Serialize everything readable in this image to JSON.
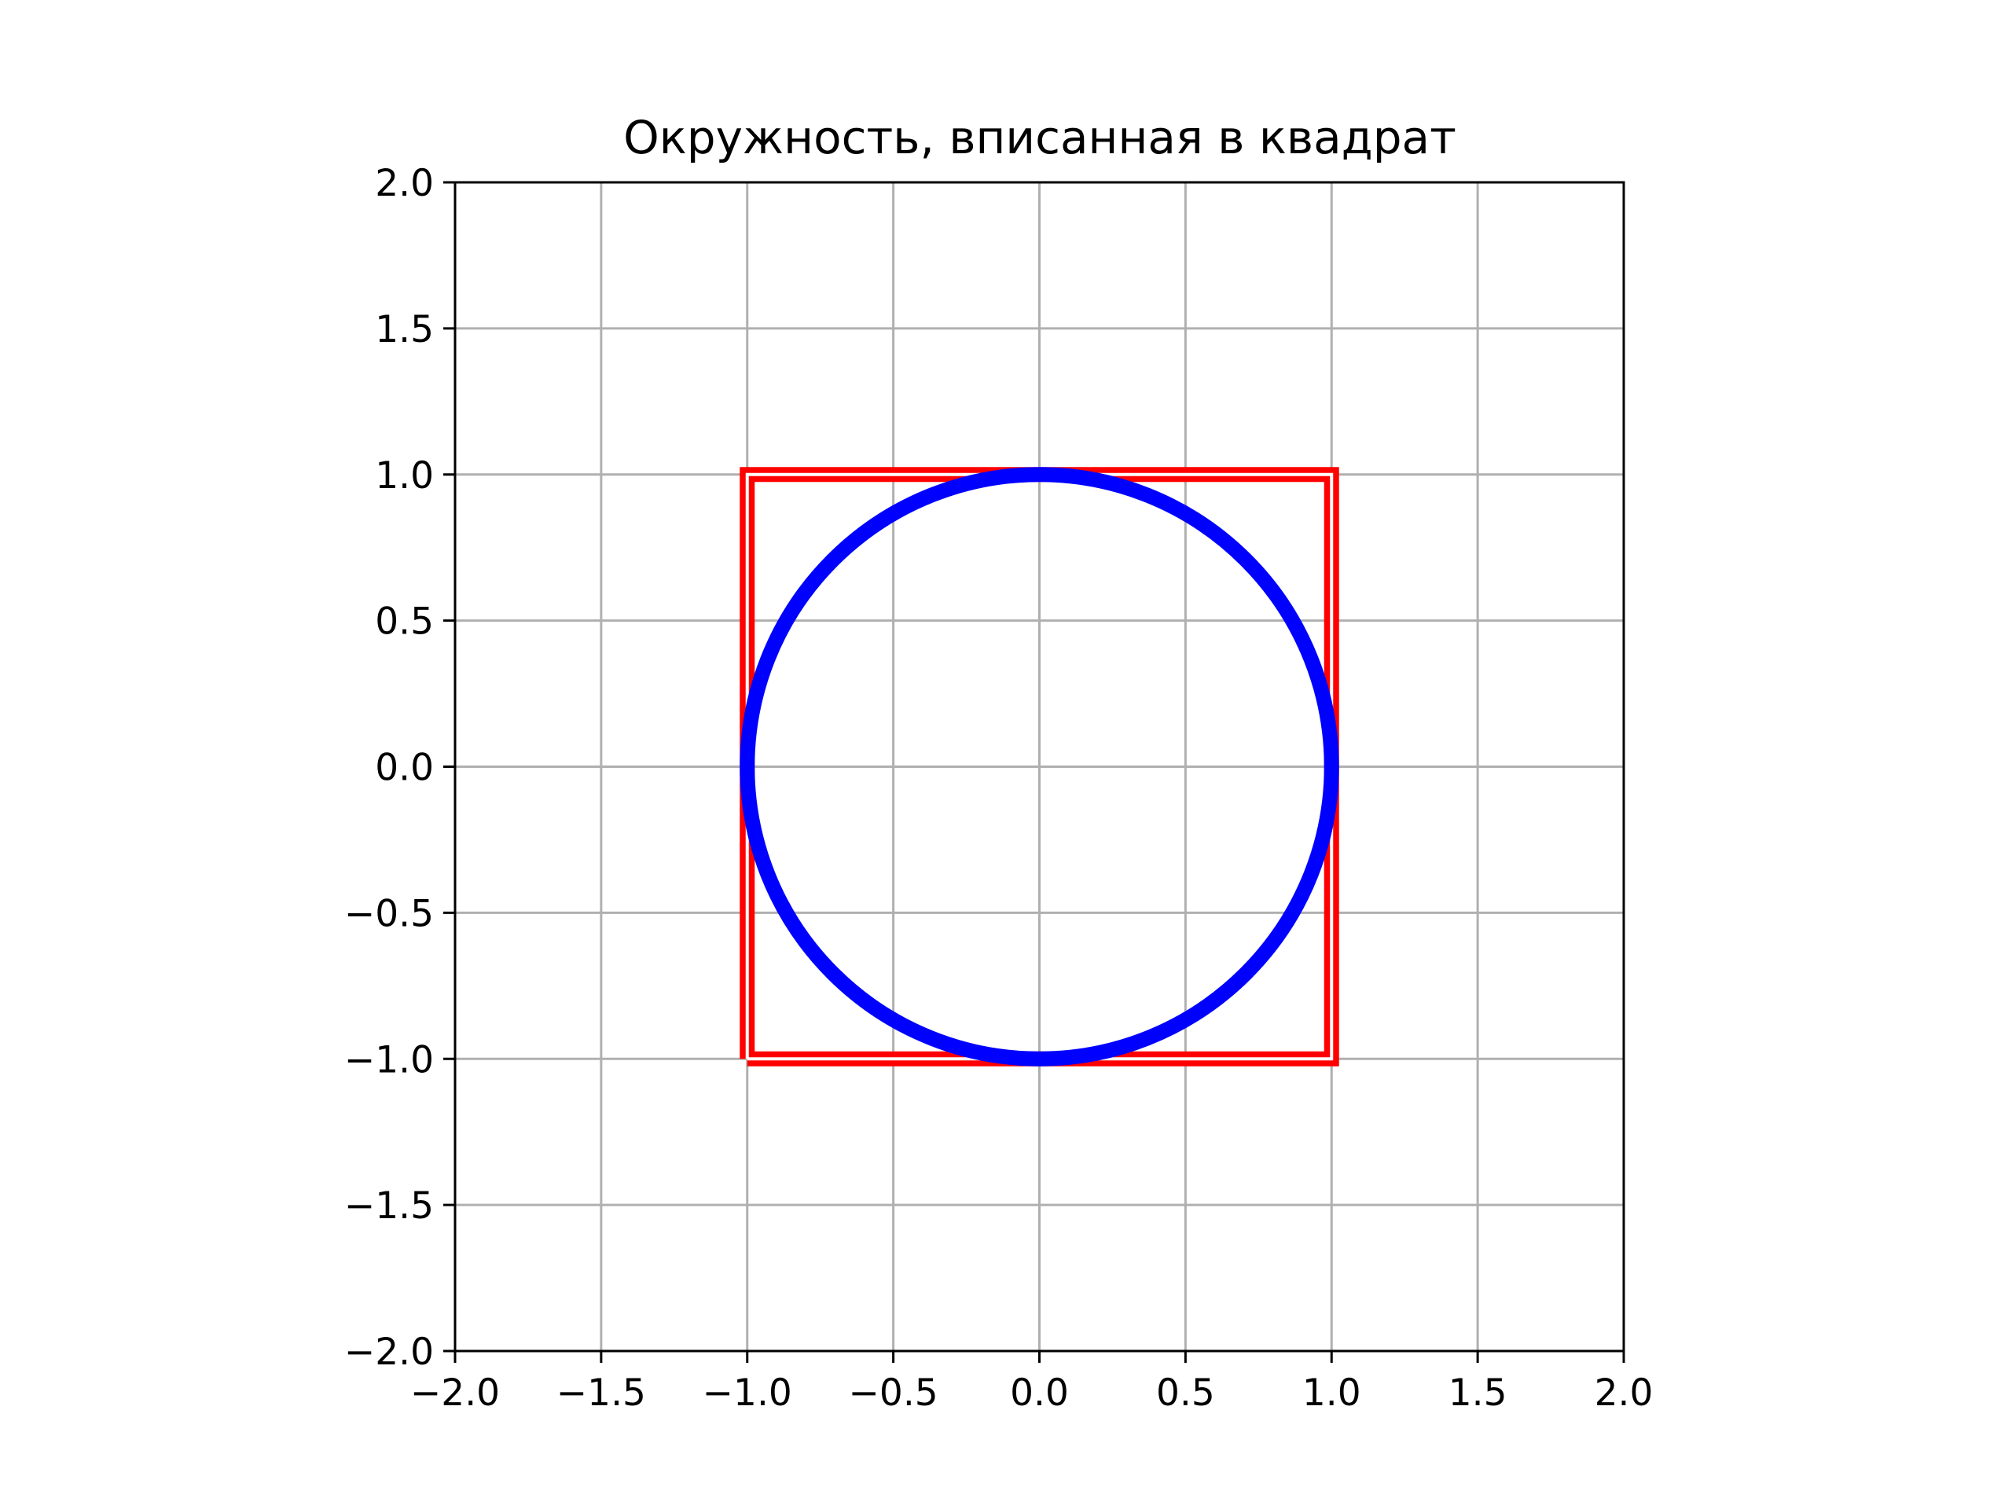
{
  "chart_data": {
    "type": "line",
    "title": "Окружность, вписанная в квадрат",
    "xlabel": "",
    "ylabel": "",
    "xlim": [
      -2.0,
      2.0
    ],
    "ylim": [
      -2.0,
      2.0
    ],
    "xticks": [
      -2.0,
      -1.5,
      -1.0,
      -0.5,
      0.0,
      0.5,
      1.0,
      1.5,
      2.0
    ],
    "yticks": [
      -2.0,
      -1.5,
      -1.0,
      -0.5,
      0.0,
      0.5,
      1.0,
      1.5,
      2.0
    ],
    "xtick_labels": [
      "−2.0",
      "−1.5",
      "−1.0",
      "−0.5",
      "0.0",
      "0.5",
      "1.0",
      "1.5",
      "2.0"
    ],
    "ytick_labels": [
      "−2.0",
      "−1.5",
      "−1.0",
      "−0.5",
      "0.0",
      "0.5",
      "1.0",
      "1.5",
      "2.0"
    ],
    "grid": true,
    "legend": "none",
    "aspect": "equal",
    "series": [
      {
        "shape": "square",
        "color": "#ff0000",
        "style": "double-line",
        "x": [
          -1.0,
          1.0,
          1.0,
          -1.0,
          -1.0
        ],
        "y": [
          -1.0,
          -1.0,
          1.0,
          1.0,
          -1.0
        ]
      },
      {
        "shape": "circle",
        "color": "#0000ff",
        "center": [
          0.0,
          0.0
        ],
        "radius": 1.0
      }
    ]
  }
}
